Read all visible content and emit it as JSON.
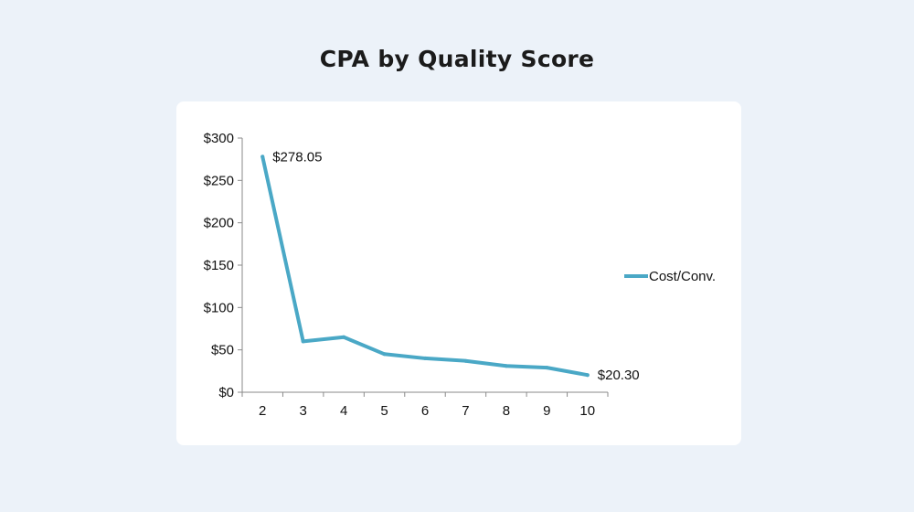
{
  "chart_data": {
    "type": "line",
    "title": "CPA by Quality Score",
    "xlabel": "",
    "ylabel": "",
    "x": [
      2,
      3,
      4,
      5,
      6,
      7,
      8,
      9,
      10
    ],
    "series": [
      {
        "name": "Cost/Conv.",
        "color": "#4aa8c6",
        "values": [
          278.05,
          60,
          65,
          45,
          40,
          37,
          31,
          29,
          20.3
        ]
      }
    ],
    "ylim": [
      0,
      300
    ],
    "yticks": [
      0,
      50,
      100,
      150,
      200,
      250,
      300
    ],
    "ytick_labels": [
      "$0",
      "$50",
      "$100",
      "$150",
      "$200",
      "$250",
      "$300"
    ],
    "xtick_labels": [
      "2",
      "3",
      "4",
      "5",
      "6",
      "7",
      "8",
      "9",
      "10"
    ],
    "annotations": [
      {
        "index": 0,
        "text": "$278.05"
      },
      {
        "index": 8,
        "text": "$20.30"
      }
    ],
    "grid": false,
    "legend_position": "right"
  }
}
